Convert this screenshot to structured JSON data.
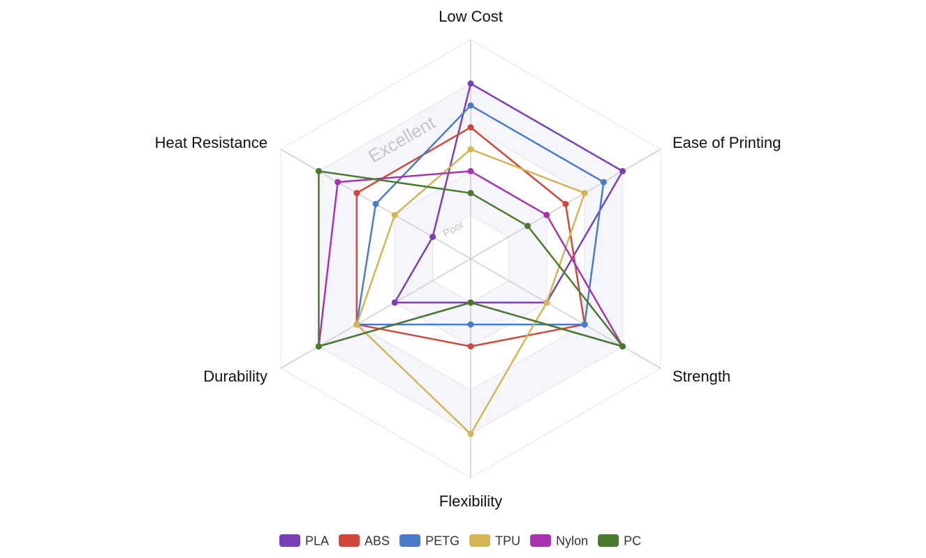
{
  "chart_data": {
    "type": "radar",
    "axes": [
      "Low Cost",
      "Ease of Printing",
      "Strength",
      "Flexibility",
      "Durability",
      "Heat Resistance"
    ],
    "range": [
      0,
      10
    ],
    "ring_step": 2,
    "tick_labels": [
      {
        "value": 2,
        "label": "Poor"
      },
      {
        "value": 8,
        "label": "Excellent"
      }
    ],
    "legend_position": "bottom",
    "series": [
      {
        "name": "PLA",
        "color": "#7b3fb5",
        "values": [
          8,
          8,
          4,
          2,
          4,
          2
        ]
      },
      {
        "name": "ABS",
        "color": "#d2473a",
        "values": [
          6,
          5,
          6,
          4,
          6,
          6
        ]
      },
      {
        "name": "PETG",
        "color": "#4a7bc8",
        "values": [
          7,
          7,
          6,
          3,
          6,
          5
        ]
      },
      {
        "name": "TPU",
        "color": "#d4b455",
        "values": [
          5,
          6,
          4,
          8,
          6,
          4
        ]
      },
      {
        "name": "Nylon",
        "color": "#a833b0",
        "values": [
          4,
          4,
          8,
          2,
          8,
          7
        ]
      },
      {
        "name": "PC",
        "color": "#4a7a2c",
        "values": [
          3,
          3,
          8,
          2,
          8,
          8
        ]
      }
    ]
  }
}
